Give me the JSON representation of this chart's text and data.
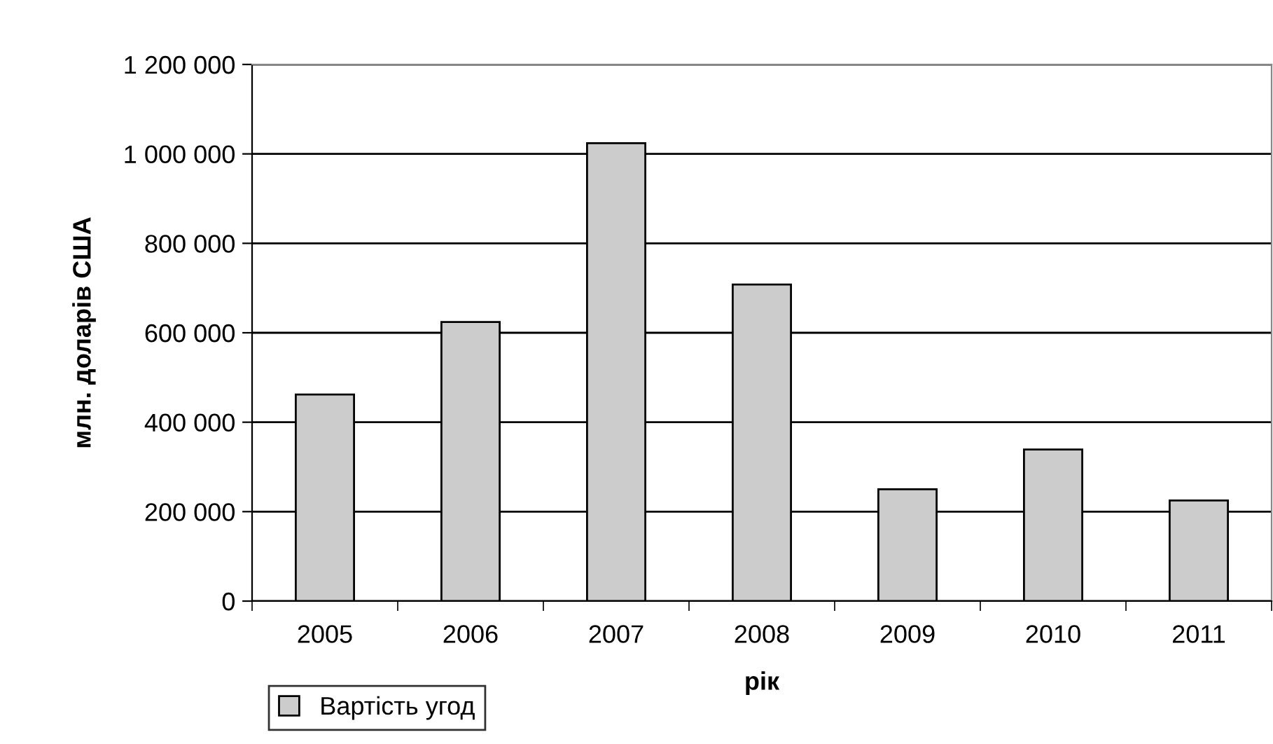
{
  "chart_data": {
    "type": "bar",
    "xlabel": "рік",
    "ylabel": "млн. доларів США",
    "categories": [
      "2005",
      "2006",
      "2007",
      "2008",
      "2009",
      "2010",
      "2011"
    ],
    "series": [
      {
        "name": "Вартість угод",
        "color": "#cccccc",
        "values": [
          462000,
          624000,
          1024000,
          708000,
          250000,
          339000,
          225000
        ]
      }
    ],
    "ylim": [
      0,
      1200000
    ],
    "yticks": [
      0,
      {
        "value": 200000,
        "label": "200 000"
      },
      {
        "value": 400000,
        "label": "400 000"
      },
      {
        "value": 600000,
        "label": "600 000"
      },
      {
        "value": 800000,
        "label": "800 000"
      },
      {
        "value": 1000000,
        "label": "1 000 000"
      },
      {
        "value": 1200000,
        "label": "1 200 000"
      }
    ],
    "grid": "y",
    "legend": "bottom left"
  }
}
